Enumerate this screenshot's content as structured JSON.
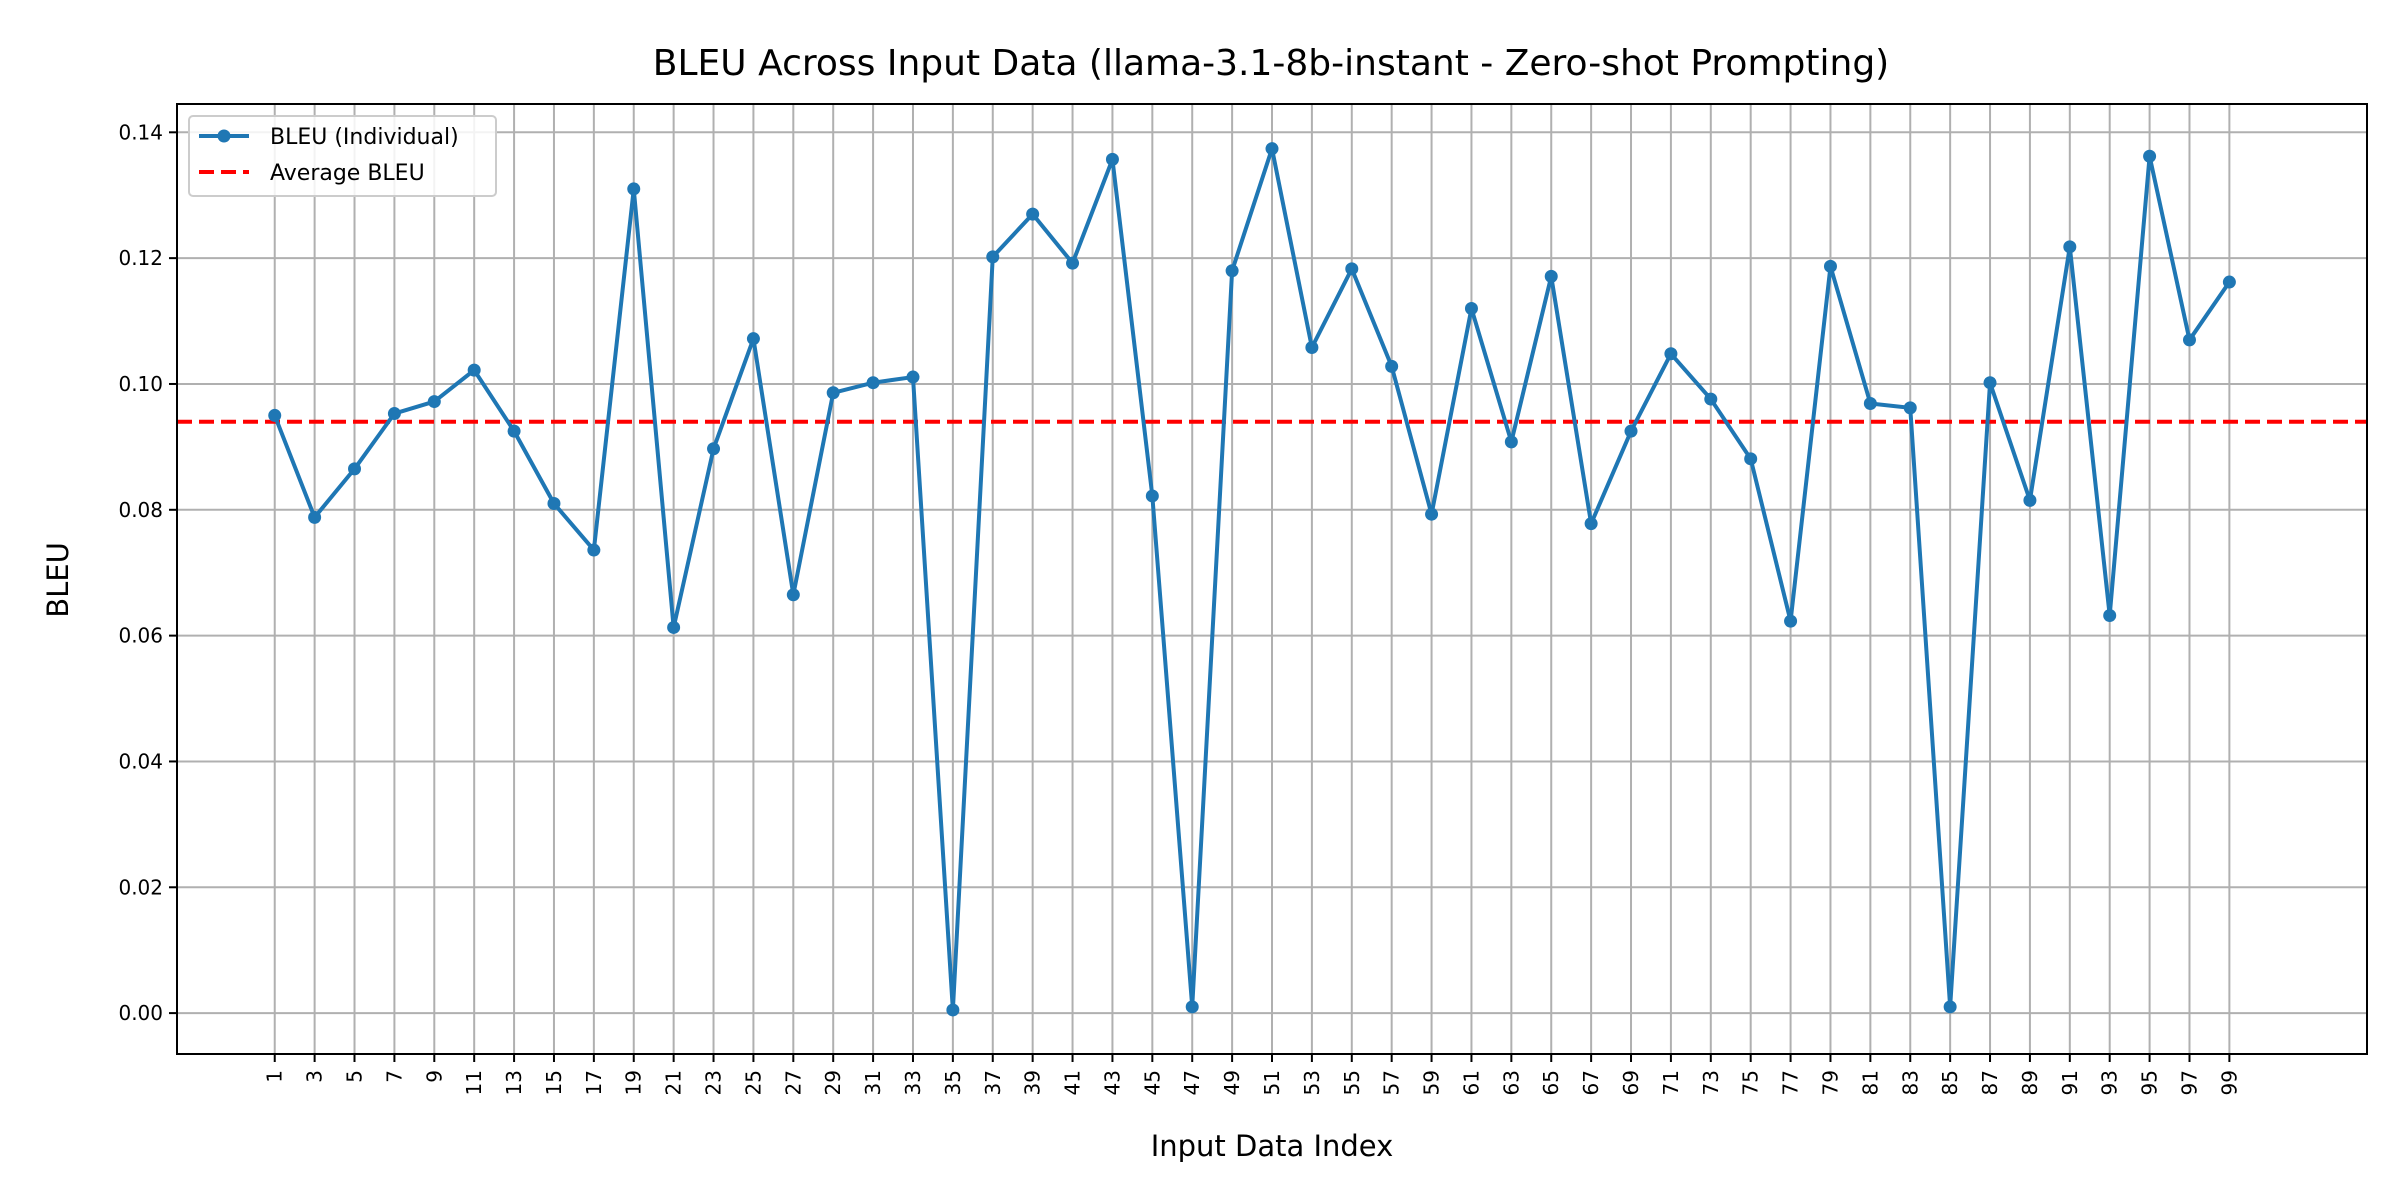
{
  "chart_data": {
    "type": "line",
    "title": "BLEU Across Input Data (llama-3.1-8b-instant - Zero-shot Prompting)",
    "xlabel": "Input Data Index",
    "ylabel": "BLEU",
    "xlim": [
      -3.9,
      105.9
    ],
    "ylim": [
      -0.0065,
      0.1445
    ],
    "y_ticks": [
      "0.00",
      "0.02",
      "0.04",
      "0.06",
      "0.08",
      "0.10",
      "0.12",
      "0.14"
    ],
    "x_tick_labels": [
      "1",
      "3",
      "5",
      "7",
      "9",
      "11",
      "13",
      "15",
      "17",
      "19",
      "21",
      "23",
      "25",
      "27",
      "29",
      "31",
      "33",
      "35",
      "37",
      "39",
      "41",
      "43",
      "45",
      "47",
      "49",
      "51",
      "53",
      "55",
      "57",
      "59",
      "61",
      "63",
      "65",
      "67",
      "69",
      "71",
      "73",
      "75",
      "77",
      "79",
      "81",
      "83",
      "85",
      "87",
      "89",
      "91",
      "93",
      "95",
      "97",
      "99"
    ],
    "grid": true,
    "legend_position": "top-left",
    "series": [
      {
        "name": "BLEU (Individual)",
        "color": "#1f77b4",
        "style": "solid-with-markers",
        "x": [
          1,
          3,
          5,
          7,
          9,
          11,
          13,
          15,
          17,
          19,
          21,
          23,
          25,
          27,
          29,
          31,
          33,
          35,
          37,
          39,
          41,
          43,
          45,
          47,
          49,
          51,
          53,
          55,
          57,
          59,
          61,
          63,
          65,
          67,
          69,
          71,
          73,
          75,
          77,
          79,
          81,
          83,
          85,
          87,
          89,
          91,
          93,
          95,
          97,
          99
        ],
        "values": [
          0.095,
          0.0788,
          0.0865,
          0.0953,
          0.0972,
          0.1022,
          0.0925,
          0.081,
          0.0736,
          0.131,
          0.0613,
          0.0897,
          0.1072,
          0.0665,
          0.0986,
          0.1002,
          0.1011,
          0.0005,
          0.1202,
          0.127,
          0.1192,
          0.1357,
          0.0822,
          0.001,
          0.118,
          0.1374,
          0.1058,
          0.1183,
          0.1028,
          0.0793,
          0.112,
          0.0908,
          0.1171,
          0.0778,
          0.0925,
          0.1048,
          0.0976,
          0.0881,
          0.0623,
          0.1187,
          0.0969,
          0.0962,
          0.001,
          0.1002,
          0.0815,
          0.1218,
          0.0632,
          0.1362,
          0.107,
          0.1162
        ]
      },
      {
        "name": "Average BLEU",
        "color": "#ff0000",
        "style": "dashed",
        "values": [
          0.094
        ]
      }
    ]
  }
}
